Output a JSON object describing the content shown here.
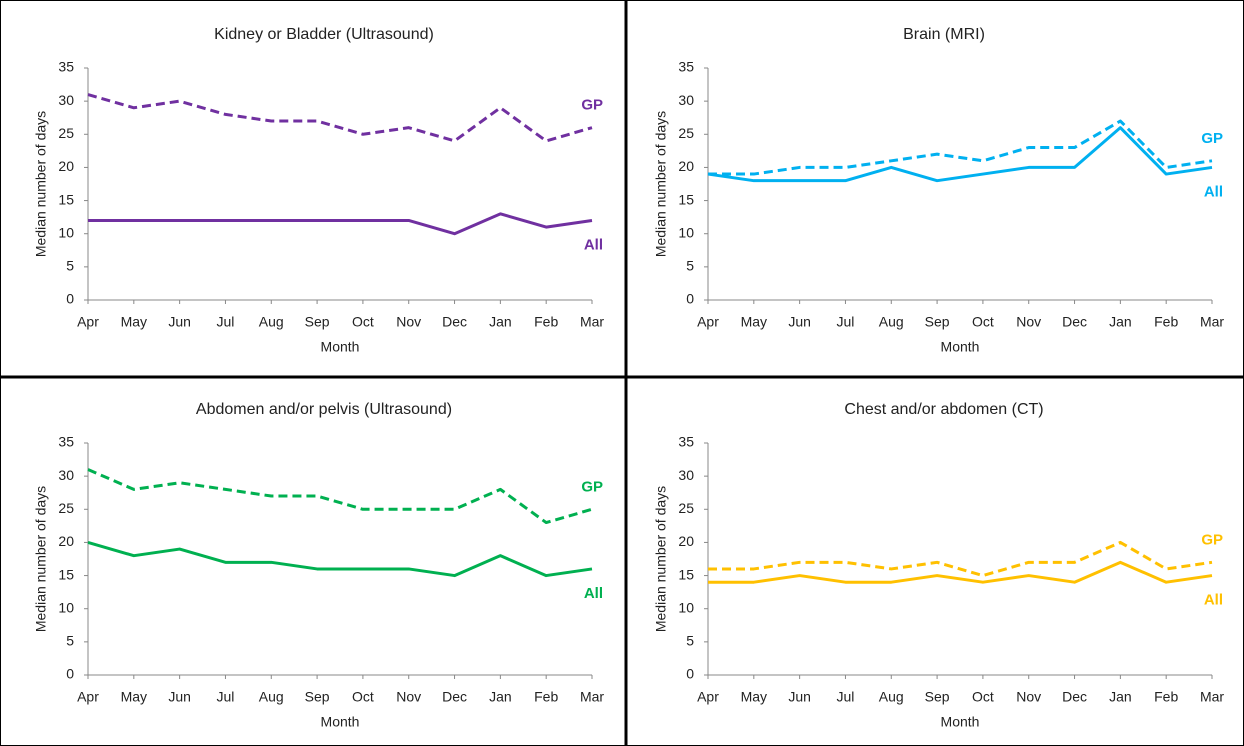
{
  "chart_data": [
    {
      "type": "line",
      "title": "Kidney or Bladder (Ultrasound)",
      "x_label": "Month",
      "y_label": "Median number of days",
      "categories": [
        "Apr",
        "May",
        "Jun",
        "Jul",
        "Aug",
        "Sep",
        "Oct",
        "Nov",
        "Dec",
        "Jan",
        "Feb",
        "Mar"
      ],
      "ylim": [
        0,
        35
      ],
      "yticks": [
        0,
        5,
        10,
        15,
        20,
        25,
        30,
        35
      ],
      "series": [
        {
          "name": "GP",
          "color": "#7030a0",
          "line_style": "dashed",
          "values": [
            31,
            29,
            30,
            28,
            27,
            27,
            25,
            26,
            24,
            29,
            24,
            26
          ]
        },
        {
          "name": "All",
          "color": "#7030a0",
          "line_style": "solid",
          "values": [
            12,
            12,
            12,
            12,
            12,
            12,
            12,
            12,
            10,
            13,
            11,
            12
          ]
        }
      ]
    },
    {
      "type": "line",
      "title": "Brain (MRI)",
      "x_label": "Month",
      "y_label": "Median number of days",
      "categories": [
        "Apr",
        "May",
        "Jun",
        "Jul",
        "Aug",
        "Sep",
        "Oct",
        "Nov",
        "Dec",
        "Jan",
        "Feb",
        "Mar"
      ],
      "ylim": [
        0,
        35
      ],
      "yticks": [
        0,
        5,
        10,
        15,
        20,
        25,
        30,
        35
      ],
      "series": [
        {
          "name": "GP",
          "color": "#00b0f0",
          "line_style": "dashed",
          "values": [
            19,
            19,
            20,
            20,
            21,
            22,
            21,
            23,
            23,
            27,
            20,
            21
          ]
        },
        {
          "name": "All",
          "color": "#00b0f0",
          "line_style": "solid",
          "values": [
            19,
            18,
            18,
            18,
            20,
            18,
            19,
            20,
            20,
            26,
            19,
            20
          ]
        }
      ]
    },
    {
      "type": "line",
      "title": "Abdomen and/or pelvis (Ultrasound)",
      "x_label": "Month",
      "y_label": "Median number of days",
      "categories": [
        "Apr",
        "May",
        "Jun",
        "Jul",
        "Aug",
        "Sep",
        "Oct",
        "Nov",
        "Dec",
        "Jan",
        "Feb",
        "Mar"
      ],
      "ylim": [
        0,
        35
      ],
      "yticks": [
        0,
        5,
        10,
        15,
        20,
        25,
        30,
        35
      ],
      "series": [
        {
          "name": "GP",
          "color": "#00b050",
          "line_style": "dashed",
          "values": [
            31,
            28,
            29,
            28,
            27,
            27,
            25,
            25,
            25,
            28,
            23,
            25
          ]
        },
        {
          "name": "All",
          "color": "#00b050",
          "line_style": "solid",
          "values": [
            20,
            18,
            19,
            17,
            17,
            16,
            16,
            16,
            15,
            18,
            15,
            16
          ]
        }
      ]
    },
    {
      "type": "line",
      "title": "Chest and/or abdomen (CT)",
      "x_label": "Month",
      "y_label": "Median number of days",
      "categories": [
        "Apr",
        "May",
        "Jun",
        "Jul",
        "Aug",
        "Sep",
        "Oct",
        "Nov",
        "Dec",
        "Jan",
        "Feb",
        "Mar"
      ],
      "ylim": [
        0,
        35
      ],
      "yticks": [
        0,
        5,
        10,
        15,
        20,
        25,
        30,
        35
      ],
      "series": [
        {
          "name": "GP",
          "color": "#ffc000",
          "line_style": "dashed",
          "values": [
            16,
            16,
            17,
            17,
            16,
            17,
            15,
            17,
            17,
            20,
            16,
            17
          ]
        },
        {
          "name": "All",
          "color": "#ffc000",
          "line_style": "solid",
          "values": [
            14,
            14,
            15,
            14,
            14,
            15,
            14,
            15,
            14,
            17,
            14,
            15
          ]
        }
      ]
    }
  ]
}
